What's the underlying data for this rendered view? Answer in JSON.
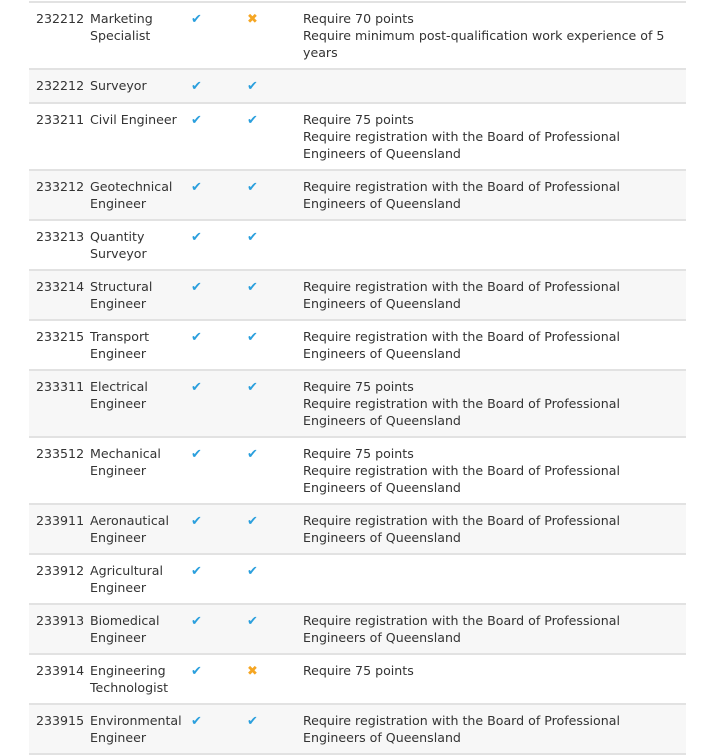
{
  "colors": {
    "check": "#2a9fdd",
    "cross": "#f5a623"
  },
  "rows": [
    {
      "code": "232212",
      "name": "Marketing Specialist",
      "a": true,
      "b": false,
      "notes": [
        "Require 70 points",
        "Require minimum post-qualification work experience of 5 years"
      ]
    },
    {
      "code": "232212",
      "name": "Surveyor",
      "a": true,
      "b": true,
      "notes": []
    },
    {
      "code": "233211",
      "name": "Civil Engineer",
      "a": true,
      "b": true,
      "notes": [
        "Require 75 points",
        "Require registration with the Board of Professional Engineers of Queensland"
      ]
    },
    {
      "code": "233212",
      "name": "Geotechnical Engineer",
      "a": true,
      "b": true,
      "notes": [
        "Require registration with the Board of Professional Engineers of Queensland"
      ]
    },
    {
      "code": "233213",
      "name": "Quantity Surveyor",
      "a": true,
      "b": true,
      "notes": []
    },
    {
      "code": "233214",
      "name": "Structural Engineer",
      "a": true,
      "b": true,
      "notes": [
        "Require registration with the Board of Professional Engineers of Queensland"
      ]
    },
    {
      "code": "233215",
      "name": "Transport Engineer",
      "a": true,
      "b": true,
      "notes": [
        "Require registration with the Board of Professional Engineers of Queensland"
      ]
    },
    {
      "code": "233311",
      "name": "Electrical Engineer",
      "a": true,
      "b": true,
      "notes": [
        "Require 75 points",
        "Require registration with the Board of Professional Engineers of Queensland"
      ]
    },
    {
      "code": "233512",
      "name": "Mechanical Engineer",
      "a": true,
      "b": true,
      "notes": [
        "Require 75 points",
        "Require registration with the Board of Professional Engineers of Queensland"
      ]
    },
    {
      "code": "233911",
      "name": "Aeronautical Engineer",
      "a": true,
      "b": true,
      "notes": [
        "Require registration with the Board of Professional Engineers of Queensland"
      ]
    },
    {
      "code": "233912",
      "name": "Agricultural Engineer",
      "a": true,
      "b": true,
      "notes": []
    },
    {
      "code": "233913",
      "name": "Biomedical Engineer",
      "a": true,
      "b": true,
      "notes": [
        "Require registration with the Board of Professional Engineers of Queensland"
      ]
    },
    {
      "code": "233914",
      "name": "Engineering Technologist",
      "a": true,
      "b": false,
      "notes": [
        "Require 75 points"
      ]
    },
    {
      "code": "233915",
      "name": "Environmental Engineer",
      "a": true,
      "b": true,
      "notes": [
        "Require registration with the Board of Professional Engineers of Queensland"
      ]
    }
  ]
}
